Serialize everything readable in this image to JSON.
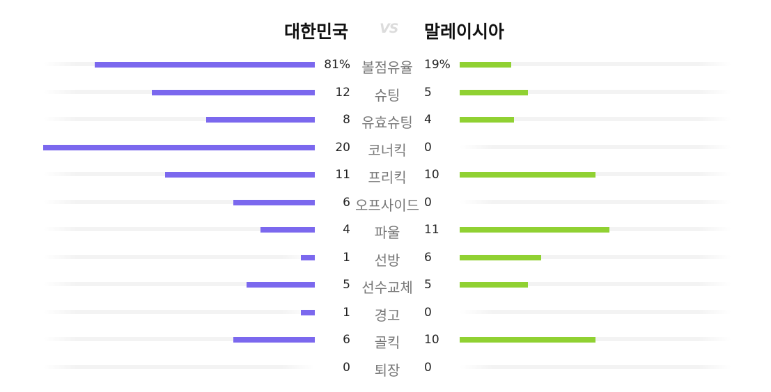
{
  "header": {
    "home_team": "대한민국",
    "vs": "VS",
    "away_team": "말레이시아"
  },
  "colors": {
    "home_bar": "#7b68ee",
    "away_bar": "#90d132"
  },
  "stats": [
    {
      "label": "볼점유율",
      "home": "81%",
      "away": "19%",
      "home_share": 0.81,
      "away_share": 0.19
    },
    {
      "label": "슈팅",
      "home": "12",
      "away": "5",
      "home_share": 0.6,
      "away_share": 0.25
    },
    {
      "label": "유효슈팅",
      "home": "8",
      "away": "4",
      "home_share": 0.4,
      "away_share": 0.2
    },
    {
      "label": "코너킥",
      "home": "20",
      "away": "0",
      "home_share": 1.0,
      "away_share": 0.0
    },
    {
      "label": "프리킥",
      "home": "11",
      "away": "10",
      "home_share": 0.55,
      "away_share": 0.5
    },
    {
      "label": "오프사이드",
      "home": "6",
      "away": "0",
      "home_share": 0.3,
      "away_share": 0.0
    },
    {
      "label": "파울",
      "home": "4",
      "away": "11",
      "home_share": 0.2,
      "away_share": 0.55
    },
    {
      "label": "선방",
      "home": "1",
      "away": "6",
      "home_share": 0.05,
      "away_share": 0.3
    },
    {
      "label": "선수교체",
      "home": "5",
      "away": "5",
      "home_share": 0.25,
      "away_share": 0.25
    },
    {
      "label": "경고",
      "home": "1",
      "away": "0",
      "home_share": 0.05,
      "away_share": 0.0
    },
    {
      "label": "골킥",
      "home": "6",
      "away": "10",
      "home_share": 0.3,
      "away_share": 0.5
    },
    {
      "label": "퇴장",
      "home": "0",
      "away": "0",
      "home_share": 0.0,
      "away_share": 0.0
    }
  ]
}
